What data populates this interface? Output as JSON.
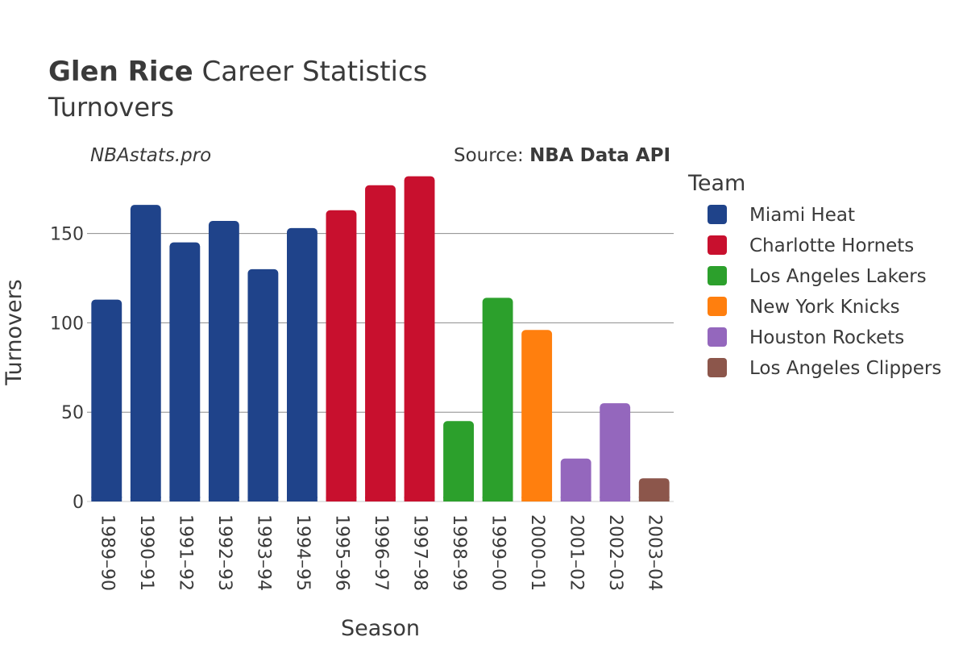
{
  "chart_data": {
    "type": "bar",
    "title_bold": "Glen Rice",
    "title_rest": "Career Statistics",
    "subtitle": "Turnovers",
    "watermark": "NBAstats.pro",
    "source_prefix": "Source: ",
    "source_bold": "NBA Data API",
    "xlabel": "Season",
    "ylabel": "Turnovers",
    "ylim": [
      0,
      185
    ],
    "yticks": [
      0,
      50,
      100,
      150
    ],
    "grid": true,
    "legend_title": "Team",
    "legend_position": "right",
    "teams": [
      {
        "name": "Miami Heat",
        "color": "#1f438a"
      },
      {
        "name": "Charlotte Hornets",
        "color": "#c8102e"
      },
      {
        "name": "Los Angeles Lakers",
        "color": "#2ca02c"
      },
      {
        "name": "New York Knicks",
        "color": "#ff7f0e"
      },
      {
        "name": "Houston Rockets",
        "color": "#9467bd"
      },
      {
        "name": "Los Angeles Clippers",
        "color": "#8c564b"
      }
    ],
    "categories": [
      "1989–90",
      "1990–91",
      "1991–92",
      "1992–93",
      "1993–94",
      "1994–95",
      "1995–96",
      "1996–97",
      "1997–98",
      "1998–99",
      "1999–00",
      "2000–01",
      "2001–02",
      "2002–03",
      "2003–04"
    ],
    "values": [
      113,
      166,
      145,
      157,
      130,
      153,
      163,
      177,
      182,
      45,
      114,
      96,
      24,
      55,
      13
    ],
    "team_index": [
      0,
      0,
      0,
      0,
      0,
      0,
      1,
      1,
      1,
      2,
      2,
      3,
      4,
      4,
      5
    ]
  }
}
